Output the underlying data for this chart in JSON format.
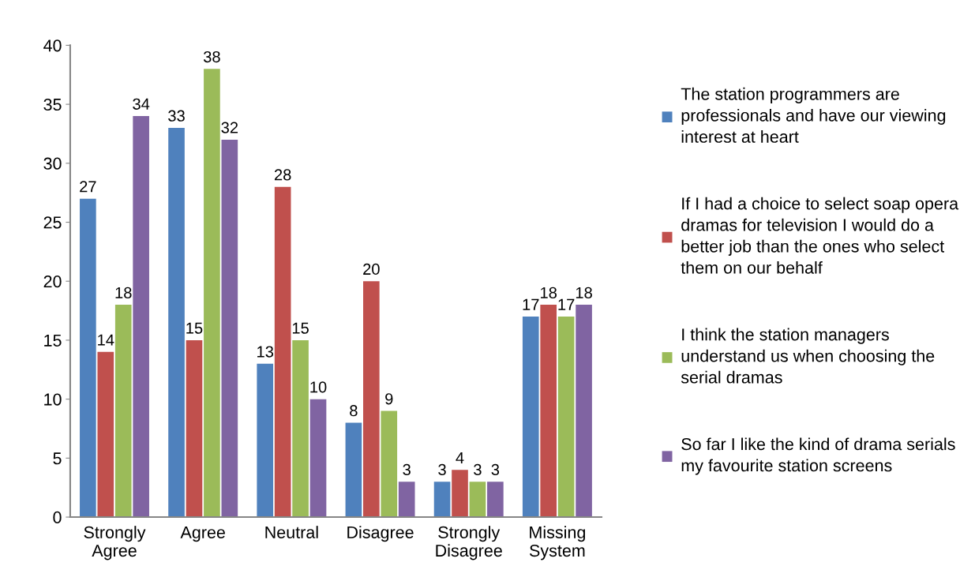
{
  "chart_data": {
    "type": "bar",
    "categories": [
      "Strongly Agree",
      "Agree",
      "Neutral",
      "Disagree",
      "Strongly Disagree",
      "Missing System"
    ],
    "series": [
      {
        "name": "The station programmers are professionals and have our viewing interest at heart",
        "color": "#4f81bd",
        "values": [
          27,
          33,
          13,
          8,
          3,
          17
        ]
      },
      {
        "name": "If I had a choice to select soap opera dramas for television I would do a better job than the ones who select them on our behalf",
        "color": "#c0504d",
        "values": [
          14,
          15,
          28,
          20,
          4,
          18
        ]
      },
      {
        "name": "I think the station managers understand us when choosing the serial dramas",
        "color": "#9bbb59",
        "values": [
          18,
          38,
          15,
          9,
          3,
          17
        ]
      },
      {
        "name": "So far I like the kind of drama serials my favourite station screens",
        "color": "#8064a2",
        "values": [
          34,
          32,
          10,
          3,
          3,
          18
        ]
      }
    ],
    "ylim": [
      0,
      40
    ],
    "yticks": [
      0,
      5,
      10,
      15,
      20,
      25,
      30,
      35,
      40
    ],
    "data_labels": true,
    "grid": false,
    "legend": "right"
  }
}
